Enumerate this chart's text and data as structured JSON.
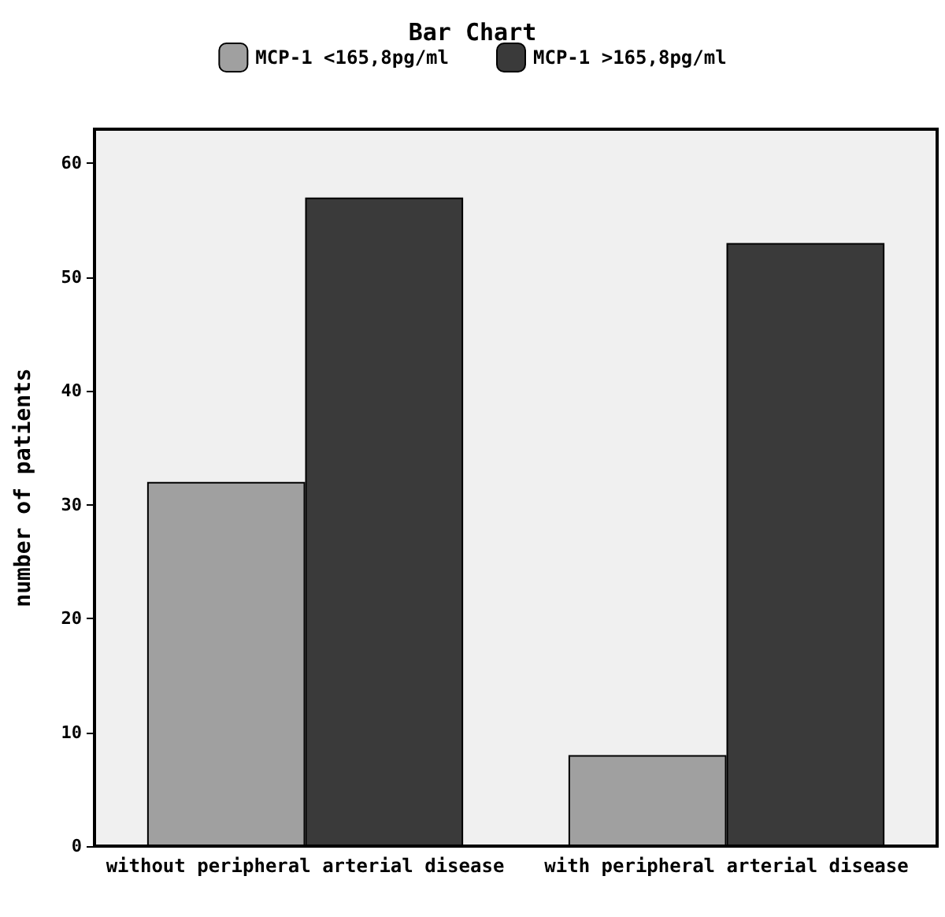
{
  "chart_data": {
    "type": "bar",
    "title": "Bar Chart",
    "ylabel": "number of patients",
    "categories": [
      "without peripheral arterial disease",
      "with peripheral arterial disease"
    ],
    "series": [
      {
        "name": "MCP-1 <165,8pg/ml",
        "color": "#a0a0a0",
        "values": [
          32,
          8
        ]
      },
      {
        "name": "MCP-1 >165,8pg/ml",
        "color": "#3a3a3a",
        "values": [
          57,
          53
        ]
      }
    ],
    "ylim": [
      0,
      63
    ],
    "yticks": [
      0,
      10,
      20,
      30,
      40,
      50,
      60
    ],
    "grid": false,
    "legend": "top"
  }
}
